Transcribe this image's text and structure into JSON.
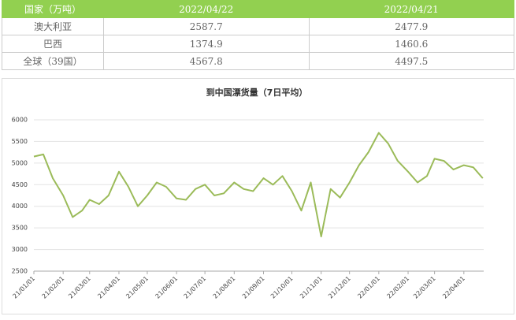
{
  "table": {
    "header": [
      "国家（万吨）",
      "2022/04/22",
      "2022/04/21"
    ],
    "rows": [
      [
        "澳大利亚",
        "2587.7",
        "2477.9"
      ],
      [
        "巴西",
        "1374.9",
        "1460.6"
      ],
      [
        "全球（39国）",
        "4567.8",
        "4497.5"
      ]
    ]
  },
  "chart_data": {
    "type": "line",
    "title": "到中国漂货量（7日平均）",
    "x": [
      "21/01/01",
      "21/01/11",
      "21/01/21",
      "21/02/01",
      "21/02/11",
      "21/02/21",
      "21/03/01",
      "21/03/11",
      "21/03/21",
      "21/04/01",
      "21/04/11",
      "21/04/21",
      "21/05/01",
      "21/05/11",
      "21/05/21",
      "21/06/01",
      "21/06/11",
      "21/06/21",
      "21/07/01",
      "21/07/11",
      "21/07/21",
      "21/08/01",
      "21/08/11",
      "21/08/21",
      "21/09/01",
      "21/09/11",
      "21/09/21",
      "21/10/01",
      "21/10/11",
      "21/10/21",
      "21/11/01",
      "21/11/11",
      "21/11/21",
      "21/12/01",
      "21/12/11",
      "21/12/21",
      "22/01/01",
      "22/01/11",
      "22/01/21",
      "22/02/01",
      "22/02/11",
      "22/02/21",
      "22/03/01",
      "22/03/11",
      "22/03/21",
      "22/04/01",
      "22/04/11",
      "22/04/21"
    ],
    "series": [
      {
        "name": "到中国漂货量",
        "color": "#9bbb59",
        "values": [
          5150,
          5200,
          4650,
          4250,
          3750,
          3900,
          4150,
          4050,
          4250,
          4800,
          4450,
          4000,
          4250,
          4550,
          4450,
          4180,
          4150,
          4400,
          4500,
          4250,
          4300,
          4550,
          4400,
          4350,
          4650,
          4500,
          4700,
          4350,
          3900,
          4550,
          3300,
          4400,
          4200,
          4550,
          4950,
          5250,
          5700,
          5450,
          5050,
          4800,
          4550,
          4700,
          5100,
          5050,
          4850,
          4950,
          4900,
          4650
        ]
      }
    ],
    "xlim": [
      "21/01/01",
      "22/04/22"
    ],
    "xticks": [
      "21/01/01",
      "21/02/01",
      "21/03/01",
      "21/04/01",
      "21/05/01",
      "21/06/01",
      "21/07/01",
      "21/08/01",
      "21/09/01",
      "21/10/01",
      "21/11/01",
      "21/12/01",
      "22/01/01",
      "22/02/01",
      "22/03/01",
      "22/04/01"
    ],
    "ylim": [
      2500,
      6000
    ],
    "yticks": [
      2500,
      3000,
      3500,
      4000,
      4500,
      5000,
      5500,
      6000
    ],
    "grid": true
  }
}
